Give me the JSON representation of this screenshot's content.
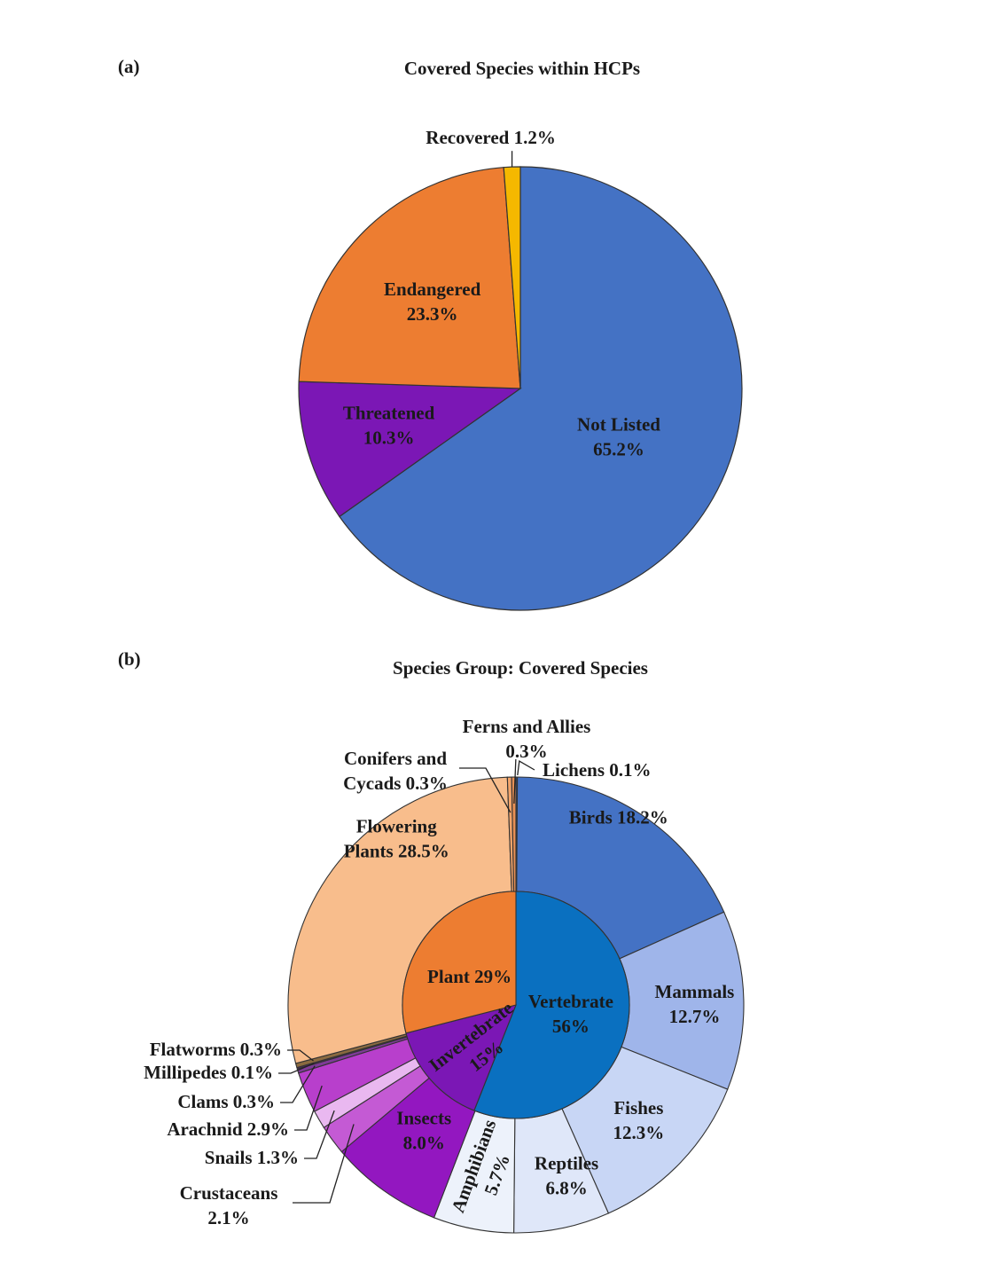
{
  "chart_data": [
    {
      "panel": "(a)",
      "type": "pie",
      "title": "Covered Species within HCPs",
      "slices": [
        {
          "name": "Not Listed",
          "value": 65.2,
          "label": "Not Listed",
          "label2": "65.2%",
          "color": "#4472c4"
        },
        {
          "name": "Threatened",
          "value": 10.3,
          "label": "Threatened",
          "label2": "10.3%",
          "color": "#7b17b5"
        },
        {
          "name": "Endangered",
          "value": 23.3,
          "label": "Endangered",
          "label2": "23.3%",
          "color": "#ed7d31"
        },
        {
          "name": "Recovered",
          "value": 1.2,
          "label": "Recovered 1.2%",
          "label2": "",
          "color": "#f5b800"
        }
      ]
    },
    {
      "panel": "(b)",
      "type": "pie",
      "subtype": "nested-donut",
      "title": "Species Group: Covered Species",
      "inner": [
        {
          "name": "Vertebrate",
          "value": 56,
          "label": "Vertebrate",
          "label2": "56%",
          "color": "#0a70c0"
        },
        {
          "name": "Invertebrate",
          "value": 15,
          "label": "Invertebrate",
          "label2": "15%",
          "color": "#7b17b5"
        },
        {
          "name": "Plant",
          "value": 29,
          "label": "Plant 29%",
          "label2": "",
          "color": "#ed7d31"
        }
      ],
      "outer": [
        {
          "name": "Lichens",
          "value": 0.1,
          "label": "Lichens 0.1%",
          "color": "#2f5597"
        },
        {
          "name": "Birds",
          "value": 18.2,
          "label": "Birds 18.2%",
          "color": "#4472c4"
        },
        {
          "name": "Mammals",
          "value": 12.7,
          "label": "Mammals",
          "label2": "12.7%",
          "color": "#9fb5ea"
        },
        {
          "name": "Fishes",
          "value": 12.3,
          "label": "Fishes",
          "label2": "12.3%",
          "color": "#c8d6f5"
        },
        {
          "name": "Reptiles",
          "value": 6.8,
          "label": "Reptiles",
          "label2": "6.8%",
          "color": "#dfe7f9"
        },
        {
          "name": "Amphibians",
          "value": 5.7,
          "label": "Amphibians",
          "label2": "5.7%",
          "color": "#edf2fb"
        },
        {
          "name": "Insects",
          "value": 8.0,
          "label": "Insects",
          "label2": "8.0%",
          "color": "#9317c0"
        },
        {
          "name": "Crustaceans",
          "value": 2.1,
          "label": "Crustaceans",
          "label2": "2.1%",
          "color": "#c45ad4"
        },
        {
          "name": "Snails",
          "value": 1.3,
          "label": "Snails 1.3%",
          "color": "#e9b8f0"
        },
        {
          "name": "Arachnid",
          "value": 2.9,
          "label": "Arachnid 2.9%",
          "color": "#b83fcc"
        },
        {
          "name": "Clams",
          "value": 0.3,
          "label": "Clams 0.3%",
          "color": "#7f3b98"
        },
        {
          "name": "Millipedes",
          "value": 0.1,
          "label": "Millipedes 0.1%",
          "color": "#5a1f70"
        },
        {
          "name": "Flatworms",
          "value": 0.3,
          "label": "Flatworms 0.3%",
          "color": "#8a6a40"
        },
        {
          "name": "Flowering Plants",
          "value": 28.5,
          "label": "Flowering",
          "label2": "Plants 28.5%",
          "color": "#f8bd8c"
        },
        {
          "name": "Conifers and Cycads",
          "value": 0.3,
          "label": "Conifers and",
          "label2": "Cycads 0.3%",
          "color": "#f3a46a"
        },
        {
          "name": "Ferns and Allies",
          "value": 0.3,
          "label": "Ferns and Allies",
          "label2": "0.3%",
          "color": "#e89055"
        }
      ]
    }
  ]
}
